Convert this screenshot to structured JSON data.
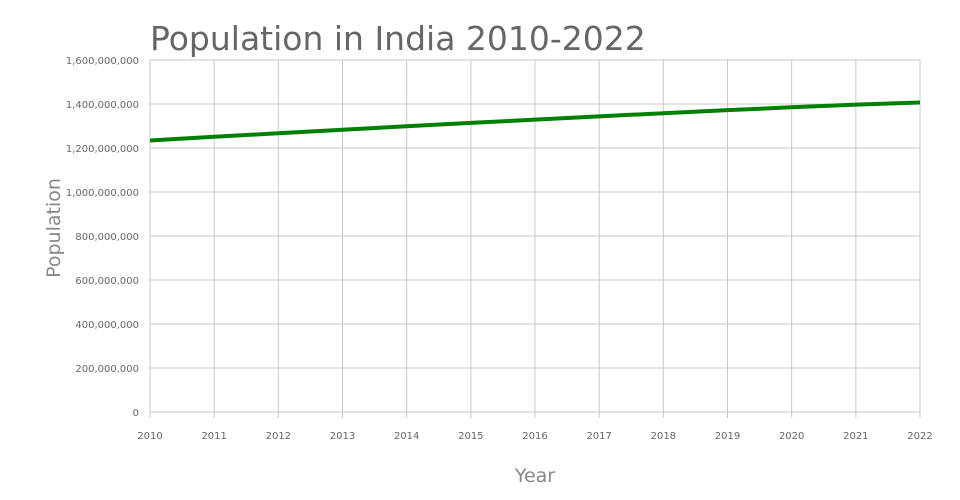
{
  "chart_data": {
    "type": "line",
    "title": "Population in India 2010-2022",
    "xlabel": "Year",
    "ylabel": "Population",
    "x": [
      2010,
      2011,
      2012,
      2013,
      2014,
      2015,
      2016,
      2017,
      2018,
      2019,
      2020,
      2021,
      2022
    ],
    "series": [
      {
        "name": "Population",
        "color": "#008000",
        "values": [
          1234000000,
          1251000000,
          1267000000,
          1283000000,
          1299000000,
          1314000000,
          1329000000,
          1344000000,
          1358000000,
          1372000000,
          1385000000,
          1397000000,
          1407000000
        ]
      }
    ],
    "ylim": [
      0,
      1600000000
    ],
    "yticks": [
      0,
      200000000,
      400000000,
      600000000,
      800000000,
      1000000000,
      1200000000,
      1400000000,
      1600000000
    ],
    "ytick_labels": [
      "0",
      "200,000,000",
      "400,000,000",
      "600,000,000",
      "800,000,000",
      "1,000,000,000",
      "1,200,000,000",
      "1,400,000,000",
      "1,600,000,000"
    ],
    "xtick_labels": [
      "2010",
      "2011",
      "2012",
      "2013",
      "2014",
      "2015",
      "2016",
      "2017",
      "2018",
      "2019",
      "2020",
      "2021",
      "2022"
    ],
    "grid": true,
    "gridColor": "#c8c8c8",
    "legend": "none"
  }
}
